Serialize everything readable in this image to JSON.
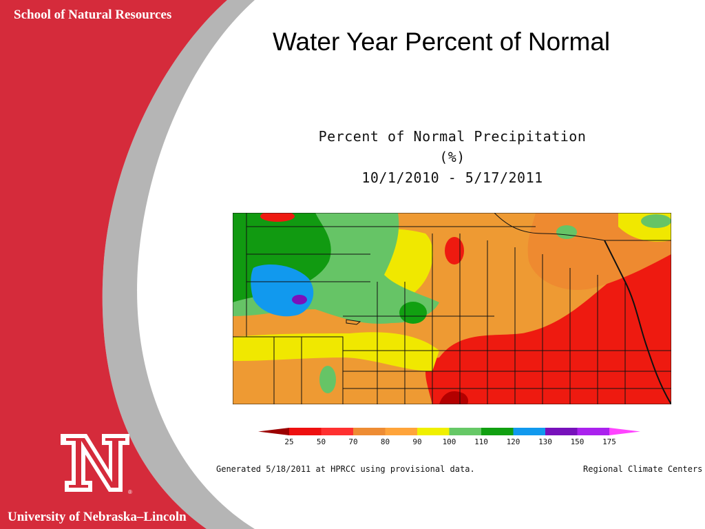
{
  "sidebar": {
    "school": "School of Natural Resources",
    "university": "University of Nebraska–Lincoln",
    "logo_letter": "N",
    "registered_mark": "®",
    "brand_color": "#d52b3b",
    "swoosh_color": "#b8b8b8"
  },
  "slide": {
    "title": "Water Year Percent of Normal"
  },
  "map": {
    "title_line1": "Percent of Normal Precipitation (%)",
    "title_line2": "10/1/2010 - 5/17/2011",
    "legend": {
      "labels": [
        "25",
        "50",
        "70",
        "80",
        "90",
        "100",
        "110",
        "120",
        "130",
        "150",
        "175"
      ],
      "colors": [
        "#9b0000",
        "#ee1010",
        "#ff3030",
        "#ee8c33",
        "#ffa43a",
        "#f0f000",
        "#66c866",
        "#11a011",
        "#1199ee",
        "#7711bb",
        "#aa22ee",
        "#ff44ff"
      ]
    },
    "generated_note": "Generated 5/18/2011 at HPRCC using provisional data.",
    "credit": "Regional Climate Centers"
  }
}
